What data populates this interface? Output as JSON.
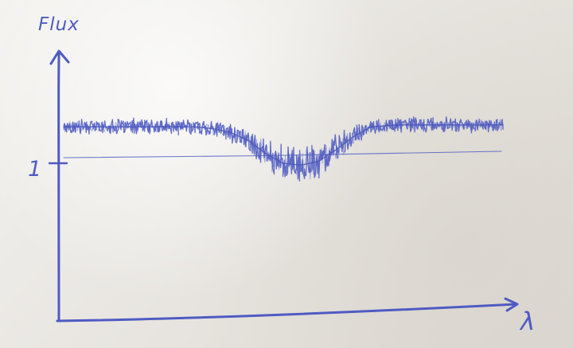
{
  "chart_data": {
    "type": "line",
    "xlabel": "λ",
    "ylabel": "Flux",
    "ylim": [
      0,
      1.35
    ],
    "xlim": [
      0,
      1
    ],
    "y_ticks": [
      1
    ],
    "y_tick_labels": [
      "1"
    ],
    "grid": false,
    "series": [
      {
        "x": [
          0.02,
          0.1,
          0.2,
          0.3,
          0.34,
          0.38,
          0.42,
          0.46,
          0.5,
          0.54,
          0.58,
          0.62,
          0.66,
          0.7,
          0.76,
          0.82,
          0.9,
          0.98
        ],
        "values": [
          1.0,
          1.0,
          1.0,
          1.0,
          0.99,
          0.97,
          0.93,
          0.86,
          0.81,
          0.8,
          0.82,
          0.88,
          0.95,
          1.0,
          1.01,
          1.01,
          1.01,
          1.01
        ]
      }
    ]
  }
}
